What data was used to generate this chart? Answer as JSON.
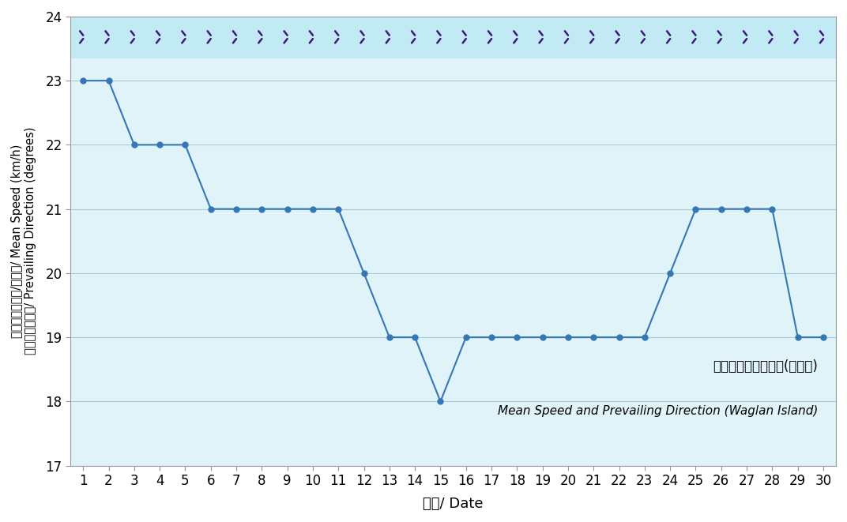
{
  "days": [
    1,
    2,
    3,
    4,
    5,
    6,
    7,
    8,
    9,
    10,
    11,
    12,
    13,
    14,
    15,
    16,
    17,
    18,
    19,
    20,
    21,
    22,
    23,
    24,
    25,
    26,
    27,
    28,
    29,
    30
  ],
  "wind_speed": [
    23,
    23,
    22,
    22,
    22,
    21,
    21,
    21,
    21,
    21,
    21,
    20,
    19,
    19,
    18,
    19,
    19,
    19,
    19,
    19,
    19,
    19,
    19,
    20,
    21,
    21,
    21,
    21,
    19,
    19
  ],
  "direction_y": 23.68,
  "ylim": [
    17,
    24
  ],
  "yticks": [
    17,
    18,
    19,
    20,
    21,
    22,
    23,
    24
  ],
  "xlim": [
    0.5,
    30.5
  ],
  "xticks": [
    1,
    2,
    3,
    4,
    5,
    6,
    7,
    8,
    9,
    10,
    11,
    12,
    13,
    14,
    15,
    16,
    17,
    18,
    19,
    20,
    21,
    22,
    23,
    24,
    25,
    26,
    27,
    28,
    29,
    30
  ],
  "line_color": "#3576B5",
  "marker_color": "#3576B5",
  "arrow_color": "#3D1A78",
  "plot_bg_color": "#dff3f9",
  "outer_bg": "#ffffff",
  "xlabel": "日期/ Date",
  "ylabel_cn": "平均風速（公里/小時）/ Mean Speed (km/h)",
  "ylabel_cn2": "盛行風向（度）/ Prevailing Direction (degrees)",
  "legend_text_cn": "平均風速及盛行風向(橫瀏島)",
  "legend_text_en": "Mean Speed and Prevailing Direction (Waglan Island)",
  "xlabel_fontsize": 13,
  "ylabel_fontsize": 10.5,
  "tick_fontsize": 12,
  "legend_fontsize_cn": 12,
  "legend_fontsize_en": 11,
  "grid_color": "#aaccd8",
  "arrow_band_color": "#c2eaf5"
}
